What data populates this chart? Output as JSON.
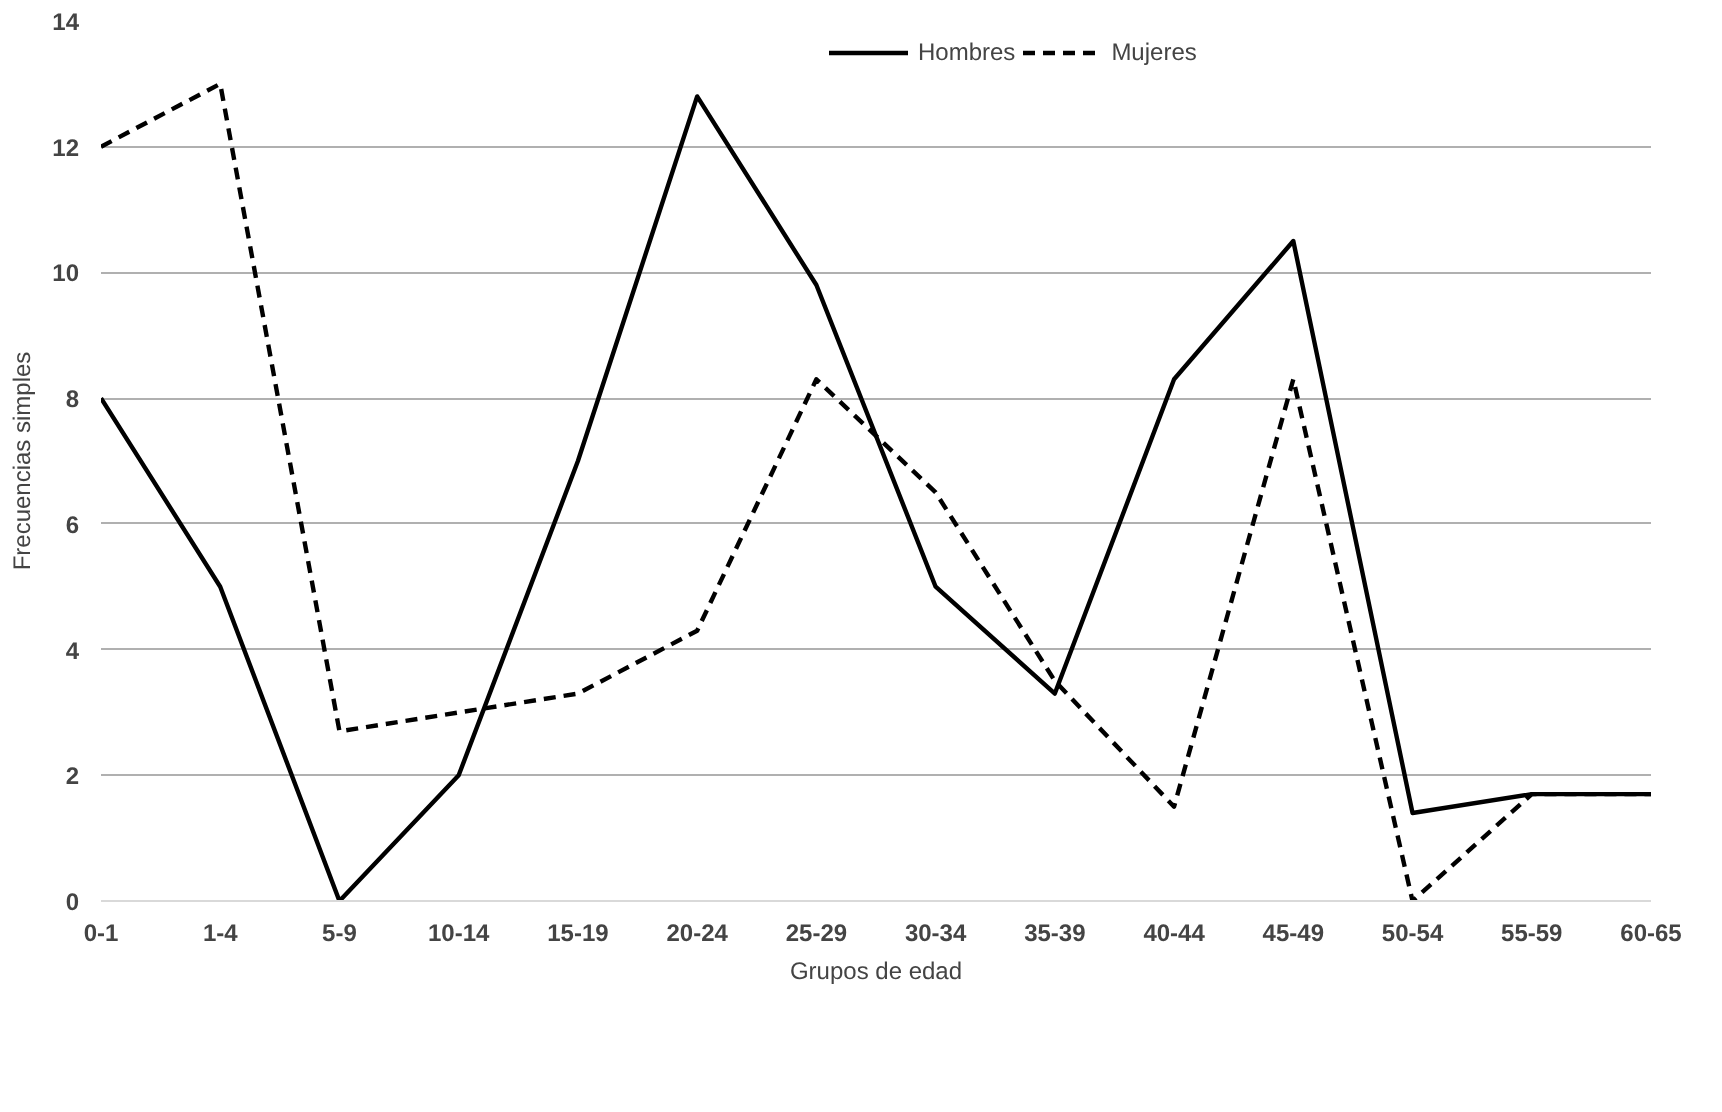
{
  "chart_data": {
    "type": "line",
    "xlabel": "Grupos de edad",
    "ylabel": "Frecuencias simples",
    "categories": [
      "0-1",
      "1-4",
      "5-9",
      "10-14",
      "15-19",
      "20-24",
      "25-29",
      "30-34",
      "35-39",
      "40-44",
      "45-49",
      "50-54",
      "55-59",
      "60-65"
    ],
    "series": [
      {
        "name": "Hombres",
        "color": "#000000",
        "line_style": "solid",
        "values": [
          8,
          5,
          0,
          2,
          7,
          12.8,
          9.8,
          5,
          3.3,
          8.3,
          10.5,
          1.4,
          1.7,
          1.7
        ]
      },
      {
        "name": "Mujeres",
        "color": "#000000",
        "line_style": "dashed",
        "values": [
          12,
          13,
          2.7,
          3,
          3.3,
          4.3,
          8.3,
          6.5,
          3.5,
          1.5,
          8.3,
          0,
          1.7,
          1.7
        ]
      }
    ],
    "ylim": [
      0,
      14
    ],
    "yticks": [
      0,
      2,
      4,
      6,
      8,
      10,
      12,
      14
    ],
    "grid": "y",
    "legend": "top",
    "marker": "none"
  }
}
